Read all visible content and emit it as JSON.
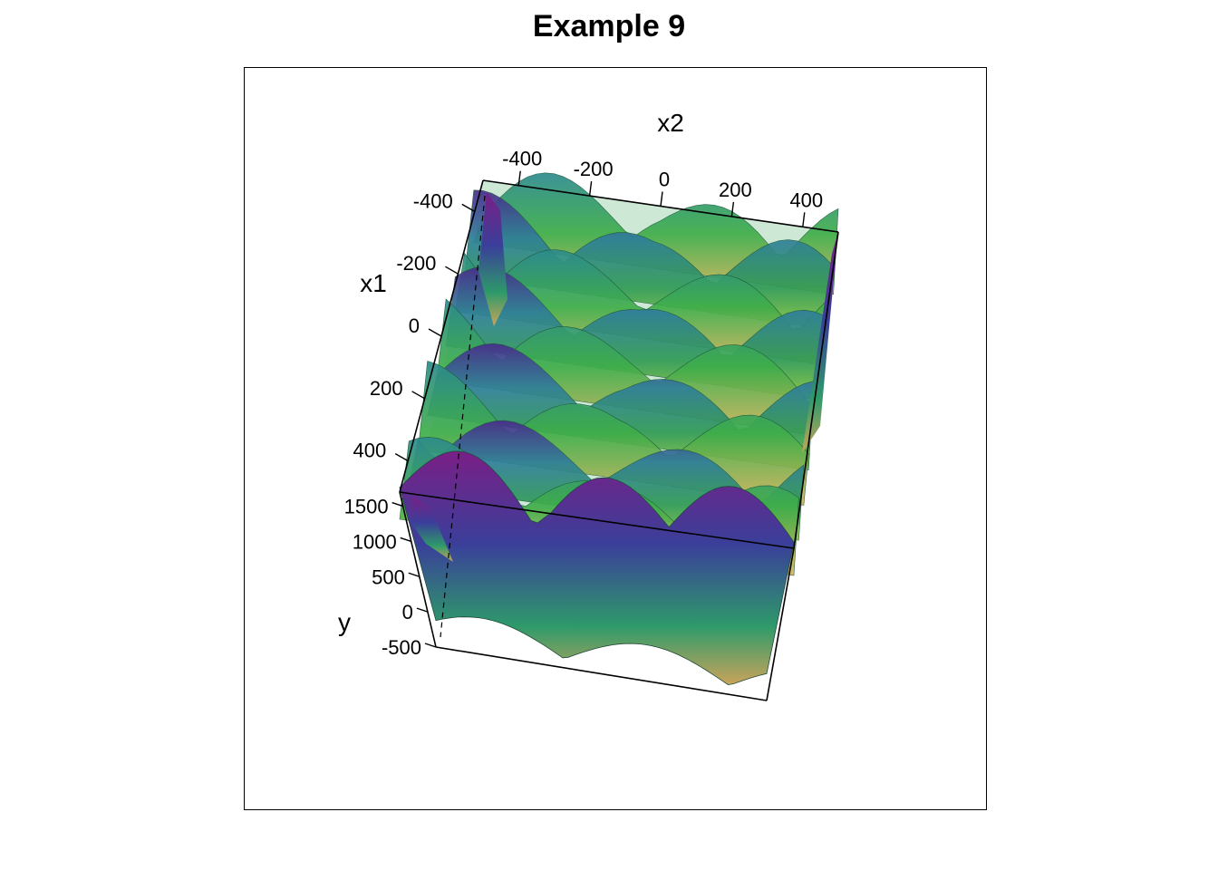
{
  "chart_data": {
    "type": "surface",
    "title": "Example 9",
    "axes": {
      "x1": {
        "label": "x1",
        "ticks": [
          -400,
          -200,
          0,
          200,
          400
        ],
        "range": [
          -500,
          500
        ]
      },
      "x2": {
        "label": "x2",
        "ticks": [
          -400,
          -200,
          0,
          200,
          400
        ],
        "range": [
          -500,
          500
        ]
      },
      "y": {
        "label": "y",
        "ticks": [
          -500,
          0,
          500,
          1000,
          1500
        ],
        "range": [
          -500,
          1700
        ]
      }
    },
    "colormap": [
      "#5c0f6e",
      "#3a3f9a",
      "#2c8a8e",
      "#2ea05a",
      "#7cc23a",
      "#e0d56a",
      "#d9873a"
    ],
    "box": true
  }
}
